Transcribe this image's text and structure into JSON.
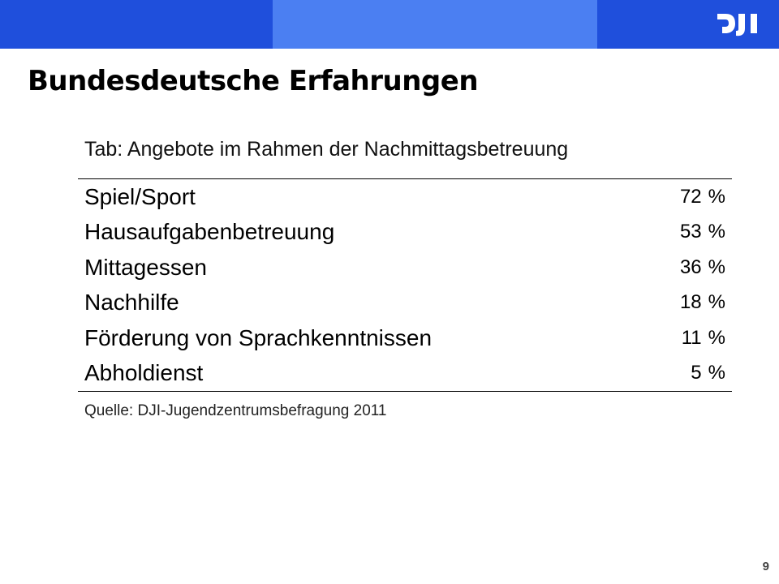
{
  "header": {
    "logo_text": "DJI",
    "band_colors": [
      "#1f4fdc",
      "#4b7ff2",
      "#1f4fdc"
    ]
  },
  "slide": {
    "title": "Bundesdeutsche Erfahrungen",
    "page_number": "9"
  },
  "chart_data": {
    "type": "table",
    "caption": "Tab: Angebote im Rahmen der Nachmittagsbetreuung",
    "unit": "%",
    "rows": [
      {
        "label": "Spiel/Sport",
        "value": 72
      },
      {
        "label": "Hausaufgabenbetreuung",
        "value": 53
      },
      {
        "label": "Mittagessen",
        "value": 36
      },
      {
        "label": "Nachhilfe",
        "value": 18
      },
      {
        "label": "Förderung von Sprachkenntnissen",
        "value": 11
      },
      {
        "label": "Abholdienst",
        "value": 5
      }
    ],
    "source": "Quelle: DJI-Jugendzentrumsbefragung 2011"
  }
}
